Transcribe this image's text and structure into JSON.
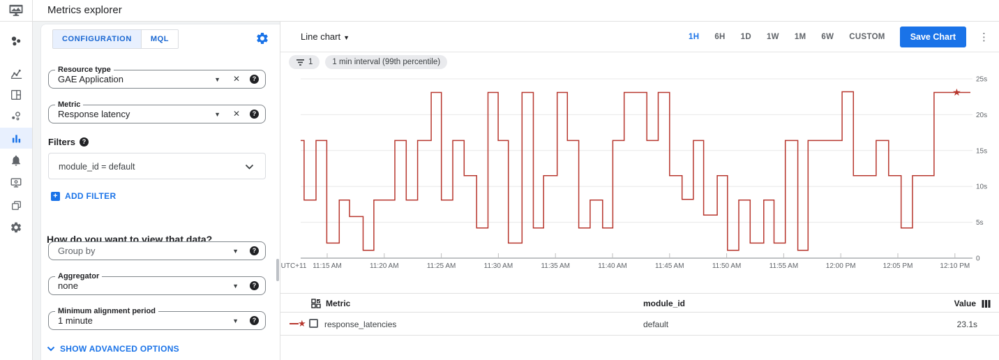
{
  "header": {
    "title": "Metrics explorer"
  },
  "sidebar": {
    "items": [
      {
        "icon": "monitoring-logo",
        "active": false
      },
      {
        "icon": "overview-icon",
        "active": false
      },
      {
        "icon": "dashboards-icon",
        "active": false
      },
      {
        "icon": "services-icon",
        "active": false
      },
      {
        "icon": "metrics-explorer-icon",
        "active": true
      },
      {
        "icon": "alerting-icon",
        "active": false
      },
      {
        "icon": "uptime-checks-icon",
        "active": false
      },
      {
        "icon": "groups-icon",
        "active": false
      },
      {
        "icon": "settings-icon",
        "active": false
      }
    ]
  },
  "panel": {
    "tabs": [
      {
        "label": "CONFIGURATION",
        "active": true
      },
      {
        "label": "MQL",
        "active": false
      }
    ],
    "resource_type": {
      "label": "Resource type",
      "value": "GAE Application"
    },
    "metric": {
      "label": "Metric",
      "value": "Response latency"
    },
    "filters": {
      "heading": "Filters",
      "chip": "module_id = default",
      "add_label": "ADD FILTER"
    },
    "view_heading": "How do you want to view that data?",
    "group_by": {
      "placeholder": "Group by"
    },
    "aggregator": {
      "label": "Aggregator",
      "value": "none"
    },
    "alignment": {
      "label": "Minimum alignment period",
      "value": "1 minute"
    },
    "advanced_label": "SHOW ADVANCED OPTIONS"
  },
  "toolbar": {
    "chart_type": "Line chart",
    "ranges": [
      "1H",
      "6H",
      "1D",
      "1W",
      "1M",
      "6W",
      "CUSTOM"
    ],
    "active_range": "1H",
    "save_label": "Save Chart"
  },
  "chips": {
    "filter_count": "1",
    "interval": "1 min interval (99th percentile)"
  },
  "chart_data": {
    "type": "line",
    "style": "step",
    "unit": "seconds",
    "ylim": [
      0,
      25
    ],
    "y_ticks": [
      "0",
      "5s",
      "10s",
      "15s",
      "20s",
      "25s"
    ],
    "timezone_label": "UTC+11",
    "x_ticks": [
      "11:15 AM",
      "11:20 AM",
      "11:25 AM",
      "11:30 AM",
      "11:35 AM",
      "11:40 AM",
      "11:45 AM",
      "11:50 AM",
      "11:55 AM",
      "12:00 PM",
      "12:05 PM",
      "12:10 PM"
    ],
    "grid": true,
    "series": [
      {
        "name": "response_latencies",
        "color": "#b7362d",
        "steps": [
          [
            0,
            16.4
          ],
          [
            0.3,
            8.1
          ],
          [
            1.35,
            16.4
          ],
          [
            2.3,
            2.1
          ],
          [
            3.4,
            8.1
          ],
          [
            4.3,
            5.8
          ],
          [
            5.5,
            1.1
          ],
          [
            6.45,
            8.1
          ],
          [
            8.3,
            16.4
          ],
          [
            9.3,
            8.1
          ],
          [
            10.3,
            16.4
          ],
          [
            11.5,
            23.1
          ],
          [
            12.4,
            8.1
          ],
          [
            13.4,
            16.4
          ],
          [
            14.4,
            11.5
          ],
          [
            15.5,
            4.2
          ],
          [
            16.5,
            23.1
          ],
          [
            17.4,
            16.4
          ],
          [
            18.3,
            2.1
          ],
          [
            19.5,
            23.1
          ],
          [
            20.5,
            4.2
          ],
          [
            21.4,
            11.5
          ],
          [
            22.6,
            23.1
          ],
          [
            23.5,
            16.4
          ],
          [
            24.5,
            4.2
          ],
          [
            25.5,
            8.1
          ],
          [
            26.6,
            4.2
          ],
          [
            27.5,
            16.4
          ],
          [
            28.5,
            23.1
          ],
          [
            30.5,
            16.4
          ],
          [
            31.5,
            23.1
          ],
          [
            32.5,
            11.5
          ],
          [
            33.6,
            8.2
          ],
          [
            34.6,
            16.4
          ],
          [
            35.5,
            6.0
          ],
          [
            36.7,
            11.5
          ],
          [
            37.6,
            1.1
          ],
          [
            38.6,
            8.1
          ],
          [
            39.6,
            2.1
          ],
          [
            40.8,
            8.1
          ],
          [
            41.7,
            2.1
          ],
          [
            42.7,
            16.4
          ],
          [
            43.8,
            1.1
          ],
          [
            44.7,
            16.4
          ],
          [
            47.7,
            23.2
          ],
          [
            48.7,
            11.5
          ],
          [
            50.7,
            16.4
          ],
          [
            51.8,
            11.5
          ],
          [
            52.9,
            4.2
          ],
          [
            53.9,
            11.5
          ],
          [
            55.8,
            23.1
          ]
        ],
        "end_min": 59,
        "marker": {
          "type": "star",
          "min": 57.8,
          "value": 23.1
        }
      }
    ]
  },
  "table": {
    "headers": {
      "metric": "Metric",
      "module_id": "module_id",
      "value": "Value"
    },
    "rows": [
      {
        "metric": "response_latencies",
        "module_id": "default",
        "value": "23.1s"
      }
    ]
  }
}
